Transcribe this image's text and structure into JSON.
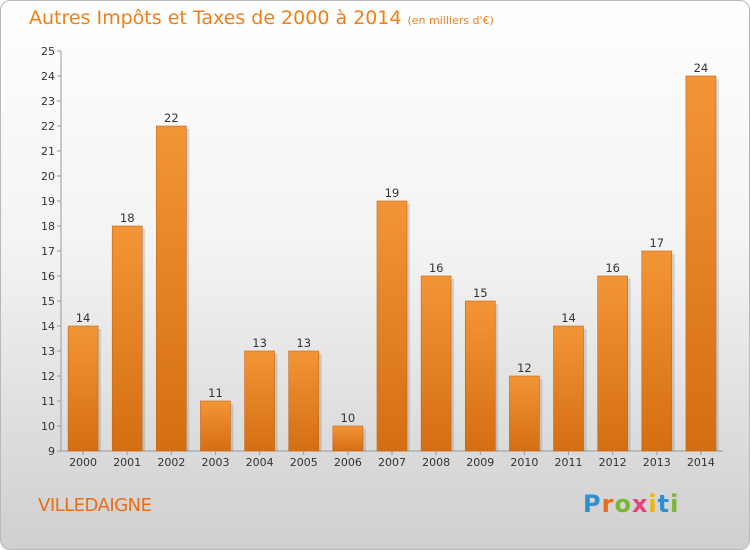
{
  "chart_data": {
    "type": "bar",
    "title": "Autres Impôts et Taxes de 2000 à 2014",
    "unit": "(en milliers d'€)",
    "categories": [
      "2000",
      "2001",
      "2002",
      "2003",
      "2004",
      "2005",
      "2006",
      "2007",
      "2008",
      "2009",
      "2010",
      "2011",
      "2012",
      "2013",
      "2014"
    ],
    "values": [
      14,
      18,
      22,
      11,
      13,
      13,
      10,
      19,
      16,
      15,
      12,
      14,
      16,
      17,
      24
    ],
    "ylim": [
      9,
      25
    ],
    "yticks": [
      9,
      10,
      11,
      12,
      13,
      14,
      15,
      16,
      17,
      18,
      19,
      20,
      21,
      22,
      23,
      24,
      25
    ],
    "grid": false,
    "bar_color": "#f39536",
    "bar_color_dark": "#d46e12"
  },
  "footer": {
    "town": "VILLEDAIGNE",
    "logo_letters": [
      "P",
      "r",
      "o",
      "x",
      "i",
      "t",
      "i"
    ],
    "logo_colors": [
      "#2e8fd1",
      "#e86d18",
      "#7ab62e",
      "#e8417e",
      "#f0b500",
      "#2e8fd1",
      "#7ab62e"
    ]
  }
}
